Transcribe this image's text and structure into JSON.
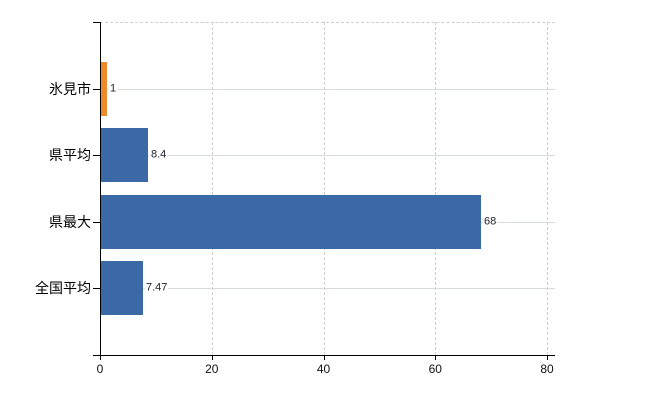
{
  "chart_data": {
    "type": "bar",
    "orientation": "horizontal",
    "title": "",
    "xlabel": "",
    "ylabel": "",
    "categories": [
      "氷見市",
      "県平均",
      "県最大",
      "全国平均"
    ],
    "values": [
      1,
      8.4,
      68,
      7.47
    ],
    "value_labels": [
      "1",
      "8.4",
      "68",
      "7.47"
    ],
    "x_tick_labels": [
      "0",
      "20",
      "40",
      "60",
      "80"
    ],
    "x_tick_values": [
      0,
      20,
      40,
      60,
      80
    ],
    "xlim": [
      0,
      80
    ],
    "grid": "on",
    "legend": "none",
    "highlight_category": "氷見市",
    "colors": {
      "highlight_bar": "#ee8a2e",
      "default_bar": "#3b69a5",
      "axis": "#000000",
      "grid_horizontal": "#d6dcd6",
      "grid_vertical": "#d2cdd2",
      "value_label_text": "#22222e",
      "tick_label_text": "#111111",
      "category_label_text": "#000000",
      "background": "#ffffff"
    }
  }
}
